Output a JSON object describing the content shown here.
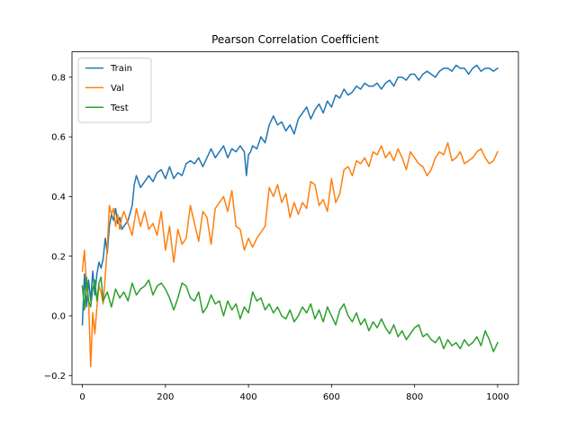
{
  "chart_data": {
    "type": "line",
    "title": "Pearson Correlation Coefficient",
    "xlabel": "",
    "ylabel": "",
    "xlim": [
      -25,
      1050
    ],
    "ylim": [
      -0.23,
      0.885
    ],
    "x_ticks": [
      0,
      200,
      400,
      600,
      800,
      1000
    ],
    "x_tick_labels": [
      "0",
      "200",
      "400",
      "600",
      "800",
      "1000"
    ],
    "y_ticks": [
      -0.2,
      0.0,
      0.2,
      0.4,
      0.6,
      0.8
    ],
    "y_tick_labels": [
      "−0.2",
      "0.0",
      "0.2",
      "0.4",
      "0.6",
      "0.8"
    ],
    "grid": false,
    "legend_position": "top-left",
    "series": [
      {
        "name": "Train",
        "color": "#1f77b4",
        "x": [
          0,
          5,
          10,
          15,
          20,
          25,
          30,
          35,
          40,
          45,
          50,
          55,
          60,
          65,
          70,
          75,
          80,
          85,
          90,
          95,
          100,
          110,
          120,
          125,
          130,
          140,
          150,
          160,
          170,
          180,
          190,
          200,
          210,
          220,
          230,
          240,
          250,
          260,
          270,
          280,
          290,
          300,
          310,
          320,
          330,
          340,
          350,
          360,
          370,
          380,
          390,
          395,
          400,
          405,
          410,
          420,
          430,
          440,
          450,
          460,
          470,
          480,
          490,
          500,
          510,
          520,
          530,
          540,
          550,
          560,
          570,
          580,
          590,
          600,
          610,
          620,
          630,
          640,
          650,
          660,
          670,
          680,
          690,
          700,
          710,
          720,
          730,
          740,
          750,
          760,
          770,
          780,
          790,
          800,
          810,
          820,
          830,
          840,
          850,
          860,
          870,
          880,
          890,
          900,
          910,
          920,
          930,
          940,
          950,
          960,
          970,
          980,
          990,
          1000
        ],
        "values": [
          -0.03,
          0.14,
          0.03,
          0.12,
          0.05,
          0.15,
          0.07,
          0.14,
          0.18,
          0.16,
          0.19,
          0.26,
          0.21,
          0.3,
          0.34,
          0.32,
          0.36,
          0.31,
          0.33,
          0.29,
          0.3,
          0.32,
          0.37,
          0.44,
          0.47,
          0.43,
          0.45,
          0.47,
          0.45,
          0.48,
          0.49,
          0.46,
          0.5,
          0.46,
          0.48,
          0.47,
          0.51,
          0.52,
          0.51,
          0.53,
          0.5,
          0.53,
          0.56,
          0.53,
          0.55,
          0.57,
          0.53,
          0.56,
          0.55,
          0.57,
          0.55,
          0.47,
          0.54,
          0.55,
          0.57,
          0.56,
          0.6,
          0.58,
          0.64,
          0.67,
          0.64,
          0.65,
          0.62,
          0.64,
          0.61,
          0.66,
          0.68,
          0.7,
          0.66,
          0.69,
          0.71,
          0.68,
          0.72,
          0.7,
          0.74,
          0.73,
          0.76,
          0.74,
          0.75,
          0.77,
          0.76,
          0.78,
          0.77,
          0.77,
          0.78,
          0.76,
          0.78,
          0.79,
          0.77,
          0.8,
          0.8,
          0.79,
          0.81,
          0.81,
          0.79,
          0.81,
          0.82,
          0.81,
          0.8,
          0.82,
          0.83,
          0.83,
          0.82,
          0.84,
          0.83,
          0.83,
          0.81,
          0.83,
          0.84,
          0.82,
          0.83,
          0.83,
          0.82,
          0.83
        ]
      },
      {
        "name": "Val",
        "color": "#ff7f0e",
        "x": [
          0,
          5,
          10,
          15,
          20,
          25,
          30,
          35,
          40,
          45,
          50,
          55,
          60,
          65,
          70,
          75,
          80,
          85,
          90,
          95,
          100,
          110,
          120,
          130,
          140,
          150,
          160,
          170,
          180,
          190,
          200,
          210,
          220,
          230,
          240,
          250,
          260,
          270,
          280,
          290,
          300,
          310,
          320,
          330,
          340,
          350,
          360,
          370,
          380,
          390,
          400,
          410,
          420,
          430,
          440,
          450,
          460,
          470,
          480,
          490,
          500,
          510,
          520,
          530,
          540,
          550,
          560,
          570,
          580,
          590,
          600,
          610,
          620,
          630,
          640,
          650,
          660,
          670,
          680,
          690,
          700,
          710,
          720,
          730,
          740,
          750,
          760,
          770,
          780,
          790,
          800,
          810,
          820,
          830,
          840,
          850,
          860,
          870,
          880,
          890,
          900,
          910,
          920,
          930,
          940,
          950,
          960,
          970,
          980,
          990,
          1000
        ],
        "values": [
          0.15,
          0.22,
          0.1,
          0.05,
          -0.17,
          0.01,
          -0.06,
          0.03,
          0.1,
          0.08,
          0.04,
          0.13,
          0.23,
          0.37,
          0.34,
          0.36,
          0.3,
          0.34,
          0.29,
          0.33,
          0.35,
          0.31,
          0.27,
          0.36,
          0.3,
          0.35,
          0.29,
          0.31,
          0.27,
          0.35,
          0.22,
          0.3,
          0.18,
          0.29,
          0.24,
          0.26,
          0.37,
          0.31,
          0.25,
          0.35,
          0.33,
          0.24,
          0.36,
          0.38,
          0.4,
          0.35,
          0.42,
          0.3,
          0.29,
          0.22,
          0.26,
          0.23,
          0.26,
          0.28,
          0.3,
          0.43,
          0.4,
          0.44,
          0.38,
          0.41,
          0.33,
          0.38,
          0.34,
          0.38,
          0.36,
          0.45,
          0.44,
          0.37,
          0.39,
          0.35,
          0.46,
          0.38,
          0.41,
          0.49,
          0.5,
          0.47,
          0.52,
          0.51,
          0.53,
          0.5,
          0.55,
          0.54,
          0.57,
          0.53,
          0.55,
          0.52,
          0.56,
          0.53,
          0.49,
          0.55,
          0.53,
          0.51,
          0.5,
          0.47,
          0.49,
          0.53,
          0.55,
          0.54,
          0.58,
          0.52,
          0.53,
          0.55,
          0.51,
          0.52,
          0.53,
          0.55,
          0.56,
          0.53,
          0.51,
          0.52,
          0.55
        ]
      },
      {
        "name": "Test",
        "color": "#2ca02c",
        "x": [
          0,
          5,
          10,
          15,
          20,
          25,
          30,
          35,
          40,
          45,
          50,
          60,
          70,
          80,
          90,
          100,
          110,
          120,
          130,
          140,
          150,
          160,
          170,
          180,
          190,
          200,
          210,
          220,
          230,
          240,
          250,
          260,
          270,
          280,
          290,
          300,
          310,
          320,
          330,
          340,
          350,
          360,
          370,
          380,
          390,
          400,
          410,
          420,
          430,
          440,
          450,
          460,
          470,
          480,
          490,
          500,
          510,
          520,
          530,
          540,
          550,
          560,
          570,
          580,
          590,
          600,
          610,
          620,
          630,
          640,
          650,
          660,
          670,
          680,
          690,
          700,
          710,
          720,
          730,
          740,
          750,
          760,
          770,
          780,
          790,
          800,
          810,
          820,
          830,
          840,
          850,
          860,
          870,
          880,
          890,
          900,
          910,
          920,
          930,
          940,
          950,
          960,
          970,
          980,
          990,
          1000
        ],
        "values": [
          0.1,
          0.02,
          0.13,
          0.05,
          0.03,
          0.09,
          0.12,
          0.05,
          0.11,
          0.13,
          0.05,
          0.08,
          0.03,
          0.09,
          0.06,
          0.08,
          0.05,
          0.11,
          0.07,
          0.09,
          0.1,
          0.12,
          0.07,
          0.1,
          0.11,
          0.09,
          0.06,
          0.02,
          0.06,
          0.11,
          0.1,
          0.06,
          0.05,
          0.08,
          0.01,
          0.03,
          0.07,
          0.04,
          0.05,
          0.0,
          0.05,
          0.02,
          0.04,
          -0.01,
          0.03,
          0.01,
          0.08,
          0.05,
          0.06,
          0.02,
          0.04,
          0.01,
          0.03,
          0.0,
          -0.01,
          0.02,
          -0.02,
          0.0,
          0.03,
          0.01,
          0.04,
          -0.01,
          0.02,
          -0.02,
          0.03,
          0.0,
          -0.03,
          0.02,
          0.04,
          0.0,
          -0.02,
          0.01,
          -0.03,
          -0.01,
          -0.05,
          -0.02,
          -0.04,
          -0.01,
          -0.04,
          -0.06,
          -0.03,
          -0.07,
          -0.05,
          -0.08,
          -0.06,
          -0.04,
          -0.03,
          -0.07,
          -0.06,
          -0.08,
          -0.09,
          -0.07,
          -0.11,
          -0.08,
          -0.1,
          -0.09,
          -0.11,
          -0.08,
          -0.1,
          -0.09,
          -0.07,
          -0.1,
          -0.05,
          -0.08,
          -0.12,
          -0.09
        ]
      }
    ]
  }
}
